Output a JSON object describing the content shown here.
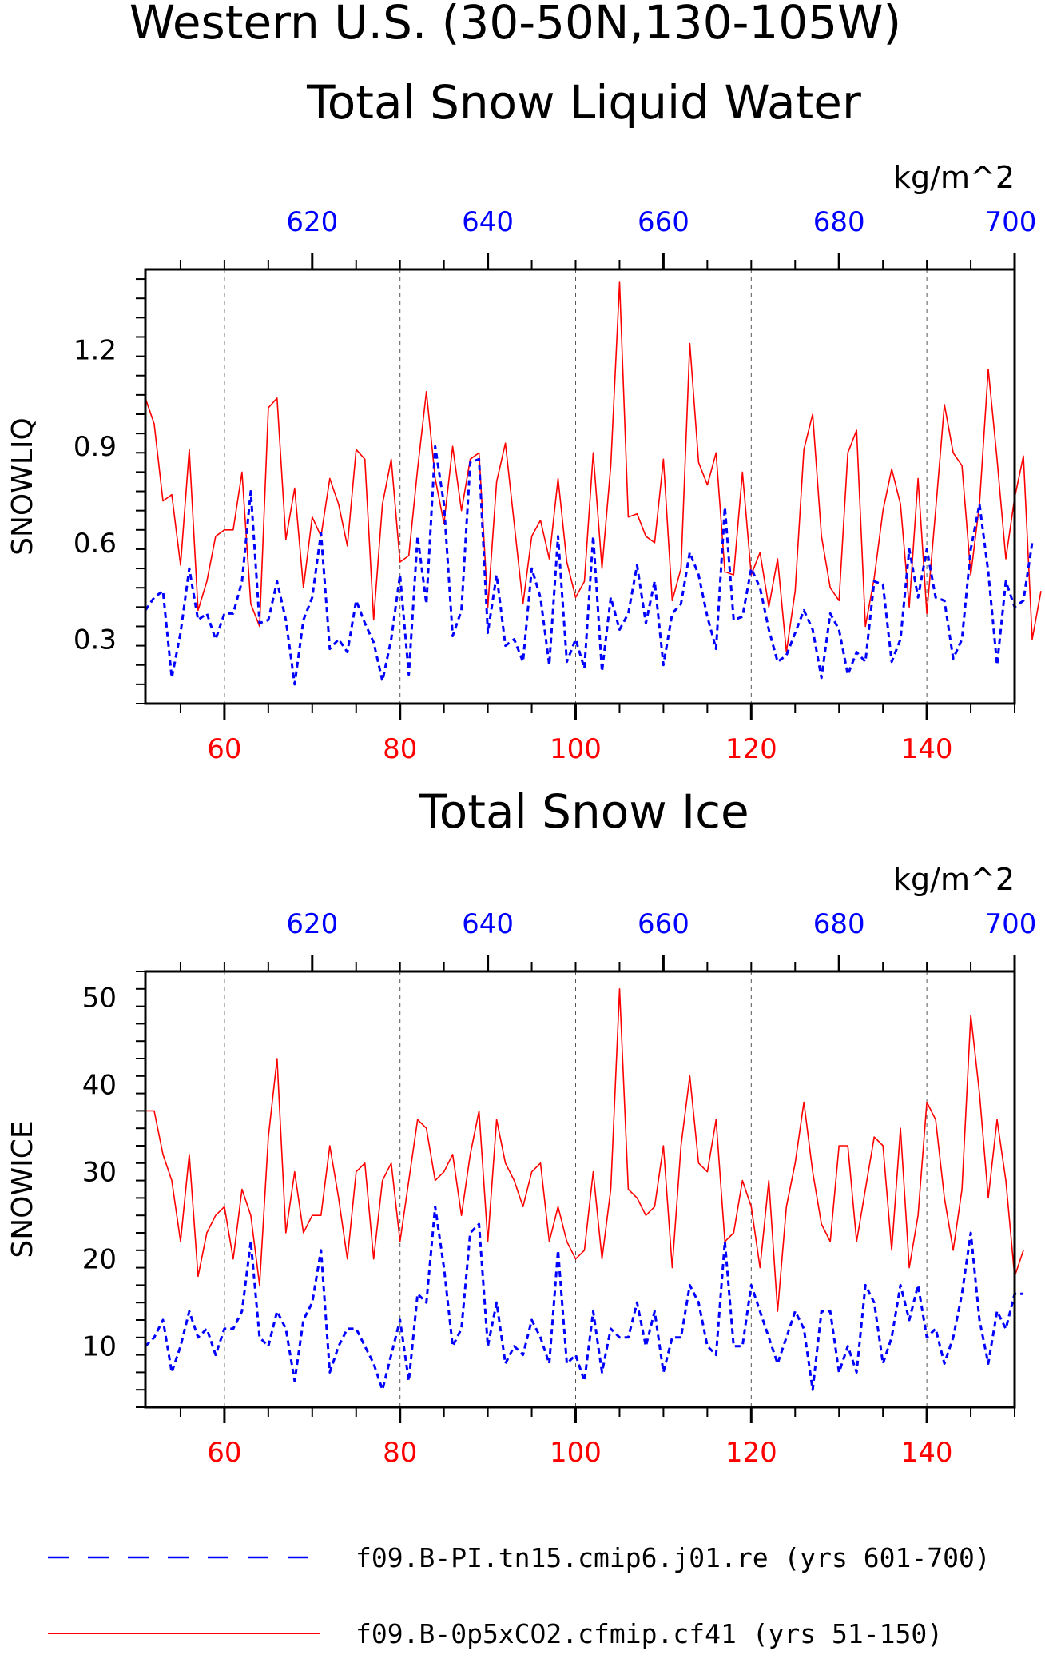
{
  "main_title": "Western U.S. (30-50N,130-105W)",
  "legend": [
    {
      "label": "f09.B-PI.tn15.cmip6.j01.re (yrs 601-700)",
      "color": "#0000ff",
      "style": "dashed"
    },
    {
      "label": "f09.B-0p5xCO2.cfmip.cf41 (yrs 51-150)",
      "color": "#ff0000",
      "style": "solid"
    }
  ],
  "panels": [
    {
      "title": "Total Snow Liquid Water",
      "ylabel": "SNOWLIQ",
      "units": "kg/m^2"
    },
    {
      "title": "Total Snow Ice",
      "ylabel": "SNOWICE",
      "units": "kg/m^2"
    }
  ],
  "chart_data": [
    {
      "type": "line",
      "title": "Total Snow Liquid Water",
      "ylabel": "SNOWLIQ",
      "units": "kg/m^2",
      "xlim_bottom": [
        51,
        150
      ],
      "xlim_top": [
        601,
        700
      ],
      "ylim": [
        0.1,
        1.45
      ],
      "yticks": [
        0.3,
        0.6,
        0.9,
        1.2
      ],
      "ytick_labels": [
        "0.3",
        "0.6",
        "0.9",
        "1.2"
      ],
      "xticks_bottom": [
        60,
        80,
        100,
        120,
        140
      ],
      "xtick_labels_bottom": [
        "60",
        "80",
        "100",
        "120",
        "140"
      ],
      "xticks_top": [
        620,
        640,
        660,
        680,
        700
      ],
      "xtick_labels_top": [
        "620",
        "640",
        "660",
        "680",
        "700"
      ],
      "grid": "vertical dashed at major bottom ticks",
      "series": [
        {
          "name": "f09.B-0p5xCO2.cfmip.cf41 (yrs 51-150)",
          "axis": "bottom",
          "color": "#ff0000",
          "style": "solid",
          "x_start": 51,
          "values": [
            1.05,
            0.97,
            0.73,
            0.75,
            0.53,
            0.89,
            0.39,
            0.48,
            0.62,
            0.64,
            0.64,
            0.82,
            0.41,
            0.34,
            1.02,
            1.05,
            0.61,
            0.77,
            0.46,
            0.68,
            0.62,
            0.8,
            0.72,
            0.59,
            0.89,
            0.86,
            0.36,
            0.72,
            0.86,
            0.54,
            0.56,
            0.83,
            1.07,
            0.8,
            0.66,
            0.9,
            0.7,
            0.86,
            0.88,
            0.4,
            0.79,
            0.91,
            0.66,
            0.41,
            0.62,
            0.67,
            0.55,
            0.8,
            0.54,
            0.43,
            0.48,
            0.88,
            0.52,
            0.84,
            1.41,
            0.68,
            0.69,
            0.62,
            0.6,
            0.86,
            0.42,
            0.52,
            1.22,
            0.85,
            0.78,
            0.88,
            0.51,
            0.5,
            0.82,
            0.5,
            0.57,
            0.4,
            0.55,
            0.26,
            0.45,
            0.89,
            1.0,
            0.62,
            0.46,
            0.42,
            0.88,
            0.95,
            0.34,
            0.49,
            0.7,
            0.83,
            0.72,
            0.4,
            0.8,
            0.38,
            0.7,
            1.03,
            0.88,
            0.84,
            0.5,
            0.72,
            1.14,
            0.86,
            0.55,
            0.74,
            0.87,
            0.3,
            0.45
          ]
        },
        {
          "name": "f09.B-PI.tn15.cmip6.j01.re (yrs 601-700)",
          "axis": "top",
          "color": "#0000ff",
          "style": "dashed",
          "x_start": 601,
          "values": [
            0.39,
            0.43,
            0.45,
            0.18,
            0.32,
            0.52,
            0.36,
            0.38,
            0.3,
            0.38,
            0.38,
            0.48,
            0.76,
            0.35,
            0.36,
            0.48,
            0.36,
            0.16,
            0.36,
            0.43,
            0.63,
            0.27,
            0.3,
            0.26,
            0.42,
            0.35,
            0.29,
            0.17,
            0.3,
            0.5,
            0.19,
            0.62,
            0.41,
            0.9,
            0.72,
            0.31,
            0.39,
            0.85,
            0.86,
            0.32,
            0.5,
            0.28,
            0.3,
            0.23,
            0.52,
            0.43,
            0.22,
            0.62,
            0.23,
            0.3,
            0.21,
            0.62,
            0.2,
            0.43,
            0.33,
            0.38,
            0.53,
            0.35,
            0.48,
            0.22,
            0.38,
            0.41,
            0.57,
            0.5,
            0.37,
            0.27,
            0.71,
            0.36,
            0.37,
            0.52,
            0.46,
            0.33,
            0.23,
            0.25,
            0.32,
            0.39,
            0.33,
            0.18,
            0.38,
            0.33,
            0.19,
            0.26,
            0.23,
            0.48,
            0.47,
            0.23,
            0.3,
            0.58,
            0.43,
            0.58,
            0.43,
            0.42,
            0.24,
            0.3,
            0.58,
            0.72,
            0.51,
            0.22,
            0.48,
            0.4,
            0.42,
            0.6
          ]
        }
      ]
    },
    {
      "type": "line",
      "title": "Total Snow Ice",
      "ylabel": "SNOWICE",
      "units": "kg/m^2",
      "xlim_bottom": [
        51,
        150
      ],
      "xlim_top": [
        601,
        700
      ],
      "ylim": [
        3,
        53
      ],
      "yticks": [
        10,
        20,
        30,
        40,
        50
      ],
      "ytick_labels": [
        "10",
        "20",
        "30",
        "40",
        "50"
      ],
      "xticks_bottom": [
        60,
        80,
        100,
        120,
        140
      ],
      "xtick_labels_bottom": [
        "60",
        "80",
        "100",
        "120",
        "140"
      ],
      "xticks_top": [
        620,
        640,
        660,
        680,
        700
      ],
      "xtick_labels_top": [
        "620",
        "640",
        "660",
        "680",
        "700"
      ],
      "grid": "vertical dashed at major bottom ticks",
      "series": [
        {
          "name": "f09.B-0p5xCO2.cfmip.cf41 (yrs 51-150)",
          "axis": "bottom",
          "color": "#ff0000",
          "style": "solid",
          "x_start": 51,
          "values": [
            37,
            37,
            32,
            29,
            22,
            32,
            18,
            23,
            25,
            26,
            20,
            28,
            25,
            17,
            34,
            43,
            23,
            30,
            23,
            25,
            25,
            33,
            27,
            20,
            30,
            31,
            20,
            29,
            31,
            22,
            29,
            36,
            35,
            29,
            30,
            32,
            25,
            32,
            37,
            22,
            36,
            31,
            29,
            26,
            30,
            31,
            22,
            26,
            22,
            20,
            21,
            30,
            20,
            28,
            51,
            28,
            27,
            25,
            26,
            33,
            19,
            33,
            41,
            31,
            30,
            36,
            22,
            23,
            29,
            26,
            19,
            29,
            14,
            26,
            31,
            38,
            30,
            24,
            22,
            33,
            33,
            22,
            28,
            34,
            33,
            21,
            35,
            19,
            25,
            38,
            36,
            27,
            21,
            28,
            48,
            39,
            27,
            36,
            29,
            18,
            21
          ]
        },
        {
          "name": "f09.B-PI.tn15.cmip6.j01.re (yrs 601-700)",
          "axis": "top",
          "color": "#0000ff",
          "style": "dashed",
          "x_start": 601,
          "values": [
            10,
            11,
            13,
            7,
            10,
            14,
            11,
            12,
            9,
            12,
            12,
            14,
            22,
            11,
            10,
            14,
            12,
            6,
            13,
            15,
            21,
            7,
            10,
            12,
            12,
            10,
            8,
            5,
            9,
            13,
            6,
            16,
            15,
            26,
            19,
            10,
            12,
            23,
            24,
            10,
            15,
            8,
            10,
            9,
            13,
            11,
            8,
            21,
            8,
            9,
            6,
            14,
            7,
            12,
            11,
            11,
            15,
            10,
            14,
            7,
            11,
            11,
            17,
            15,
            10,
            9,
            22,
            10,
            10,
            17,
            14,
            11,
            8,
            11,
            14,
            12,
            5,
            14,
            14,
            7,
            10,
            7,
            17,
            15,
            8,
            11,
            17,
            13,
            17,
            11,
            12,
            8,
            11,
            16,
            23,
            13,
            8,
            14,
            12,
            16,
            16
          ]
        }
      ]
    }
  ]
}
